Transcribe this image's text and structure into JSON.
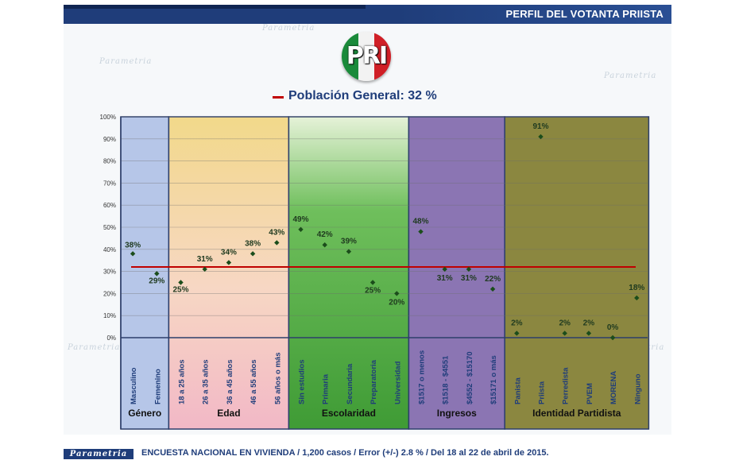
{
  "header": {
    "title": "PERFIL DEL VOTANTA PRIISTA"
  },
  "logo": {
    "text": "PRI"
  },
  "legend": {
    "label": "Población General: 32 %"
  },
  "watermark": {
    "text": "Parametria"
  },
  "footer": {
    "brand": "Parametria",
    "note": "ENCUESTA NACIONAL EN VIVIENDA / 1,200 casos / Error (+/-) 2.8 % / Del 18 al 22 de abril de 2015."
  },
  "colors": {
    "navy": "#1f3d7a",
    "reference_line": "#c00000",
    "marker": "#1b4d1b",
    "genero": "#b6c6e8",
    "escolaridad": "#3f9b35",
    "ingresos": "#8b75b3",
    "identidad": "#8b8740"
  },
  "chart_data": {
    "type": "scatter",
    "title": "PERFIL DEL VOTANTA PRIISTA",
    "ylabel": "",
    "xlabel": "",
    "ylim": [
      0,
      100
    ],
    "y_ticks": [
      "0%",
      "10%",
      "20%",
      "30%",
      "40%",
      "50%",
      "60%",
      "70%",
      "80%",
      "90%",
      "100%"
    ],
    "reference_line": {
      "label": "Población General: 32 %",
      "value": 32
    },
    "groups": [
      {
        "name": "Género",
        "categories": [
          "Masculino",
          "Femenino"
        ],
        "values": [
          38,
          29
        ],
        "labels": [
          "38%",
          "29%"
        ]
      },
      {
        "name": "Edad",
        "categories": [
          "18 a 25 años",
          "26 a 35 años",
          "36 a 45 años",
          "46 a 55 años",
          "56 años o más"
        ],
        "values": [
          25,
          31,
          34,
          38,
          43
        ],
        "labels": [
          "25%",
          "31%",
          "34%",
          "38%",
          "43%"
        ]
      },
      {
        "name": "Escolaridad",
        "categories": [
          "Sin estudios",
          "Primaria",
          "Secundaria",
          "Preparatoria",
          "Universidad"
        ],
        "values": [
          49,
          42,
          39,
          25,
          20
        ],
        "labels": [
          "49%",
          "42%",
          "39%",
          "25%",
          "20%"
        ]
      },
      {
        "name": "Ingresos",
        "categories": [
          "$1517 o menos",
          "$1518 - $4551",
          "$4552 - $15170",
          "$15171 o más"
        ],
        "values": [
          48,
          31,
          31,
          22
        ],
        "labels": [
          "48%",
          "31%",
          "31%",
          "22%"
        ]
      },
      {
        "name": "Identidad Partidista",
        "categories": [
          "Panista",
          "Priista",
          "Perredista",
          "PVEM",
          "MORENA",
          "Ninguno"
        ],
        "values": [
          2,
          91,
          2,
          2,
          0,
          18
        ],
        "labels": [
          "2%",
          "91%",
          "2%",
          "2%",
          "0%",
          "18%"
        ]
      }
    ]
  }
}
